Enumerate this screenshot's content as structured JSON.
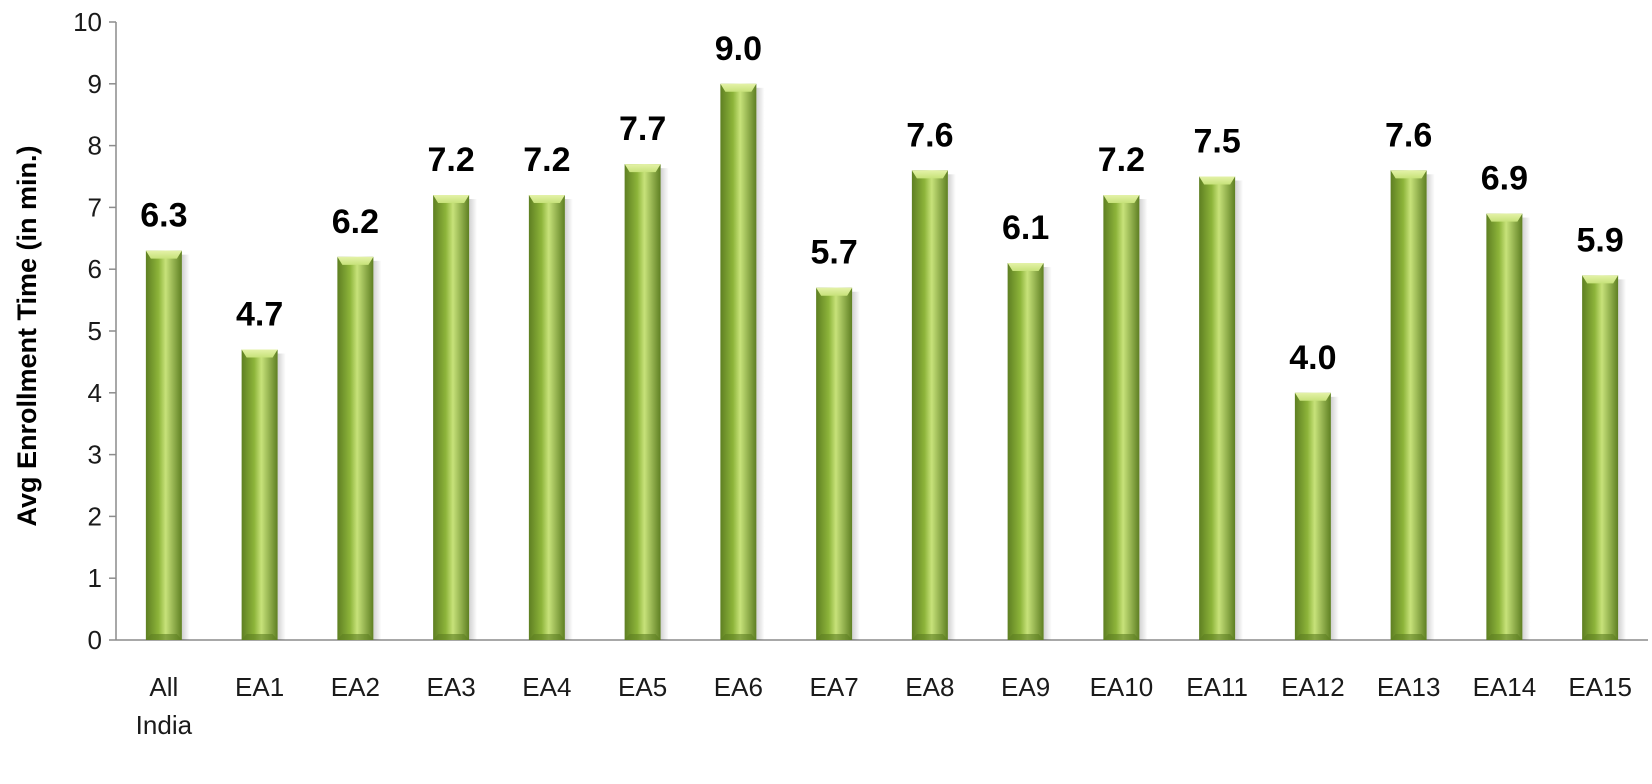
{
  "chart_data": {
    "type": "bar",
    "title": "",
    "xlabel": "",
    "ylabel": "Avg Enrollment Time (in min.)",
    "ylim": [
      0,
      10
    ],
    "yticks": [
      "0",
      "1",
      "2",
      "3",
      "4",
      "5",
      "6",
      "7",
      "8",
      "9",
      "10"
    ],
    "grid": false,
    "legend": "none",
    "categories": [
      "All India",
      "EA1",
      "EA2",
      "EA3",
      "EA4",
      "EA5",
      "EA6",
      "EA7",
      "EA8",
      "EA9",
      "EA10",
      "EA11",
      "EA12",
      "EA13",
      "EA14",
      "EA15"
    ],
    "values": [
      6.3,
      4.7,
      6.2,
      7.2,
      7.2,
      7.7,
      9.0,
      5.7,
      7.6,
      6.1,
      7.2,
      7.5,
      4.0,
      7.6,
      6.9,
      5.9
    ],
    "data_labels": [
      "6.3",
      "4.7",
      "6.2",
      "7.2",
      "7.2",
      "7.7",
      "9.0",
      "5.7",
      "7.6",
      "6.1",
      "7.2",
      "7.5",
      "4.0",
      "7.6",
      "6.9",
      "5.9"
    ],
    "bar_color": "#8DB43A",
    "bar_highlight": "#C7E27A",
    "bar_shadow": "#5E7F22"
  }
}
